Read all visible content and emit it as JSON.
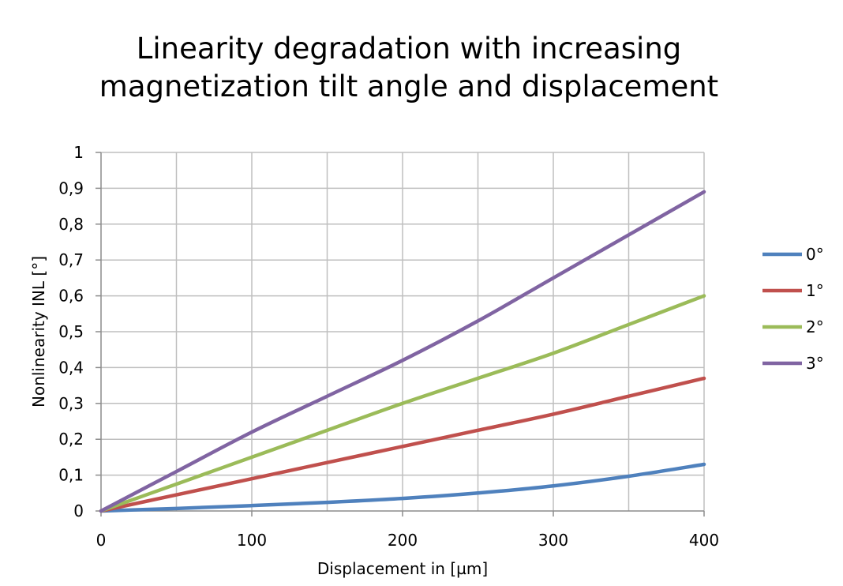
{
  "chart_data": {
    "type": "line",
    "title": [
      "Linearity degradation with increasing",
      "magnetization tilt angle and displacement"
    ],
    "xlabel": "Displacement in [µm]",
    "ylabel": "Nonlinearity INL [°]",
    "xlim": [
      0,
      400
    ],
    "ylim": [
      0,
      1
    ],
    "x_ticks": [
      0,
      100,
      200,
      300,
      400
    ],
    "x_tick_labels": [
      "0",
      "100",
      "200",
      "300",
      "400"
    ],
    "y_ticks": [
      0,
      0.1,
      0.2,
      0.3,
      0.4,
      0.5,
      0.6,
      0.7,
      0.8,
      0.9,
      1
    ],
    "y_tick_labels": [
      "0",
      "0,1",
      "0,2",
      "0,3",
      "0,4",
      "0,5",
      "0,6",
      "0,7",
      "0,8",
      "0,9",
      "1"
    ],
    "grid": true,
    "legend_position": "right",
    "x": [
      0,
      50,
      100,
      150,
      200,
      250,
      300,
      350,
      400
    ],
    "series": [
      {
        "name": "0°",
        "color": "#4f81bd",
        "values": [
          0,
          0.007,
          0.015,
          0.024,
          0.035,
          0.05,
          0.07,
          0.097,
          0.13
        ]
      },
      {
        "name": "1°",
        "color": "#c0504d",
        "values": [
          0,
          0.045,
          0.09,
          0.135,
          0.18,
          0.225,
          0.27,
          0.32,
          0.37
        ]
      },
      {
        "name": "2°",
        "color": "#9bbb59",
        "values": [
          0,
          0.075,
          0.15,
          0.225,
          0.3,
          0.37,
          0.44,
          0.52,
          0.6
        ]
      },
      {
        "name": "3°",
        "color": "#8064a2",
        "values": [
          0,
          0.11,
          0.22,
          0.32,
          0.42,
          0.53,
          0.65,
          0.77,
          0.89
        ]
      }
    ]
  }
}
